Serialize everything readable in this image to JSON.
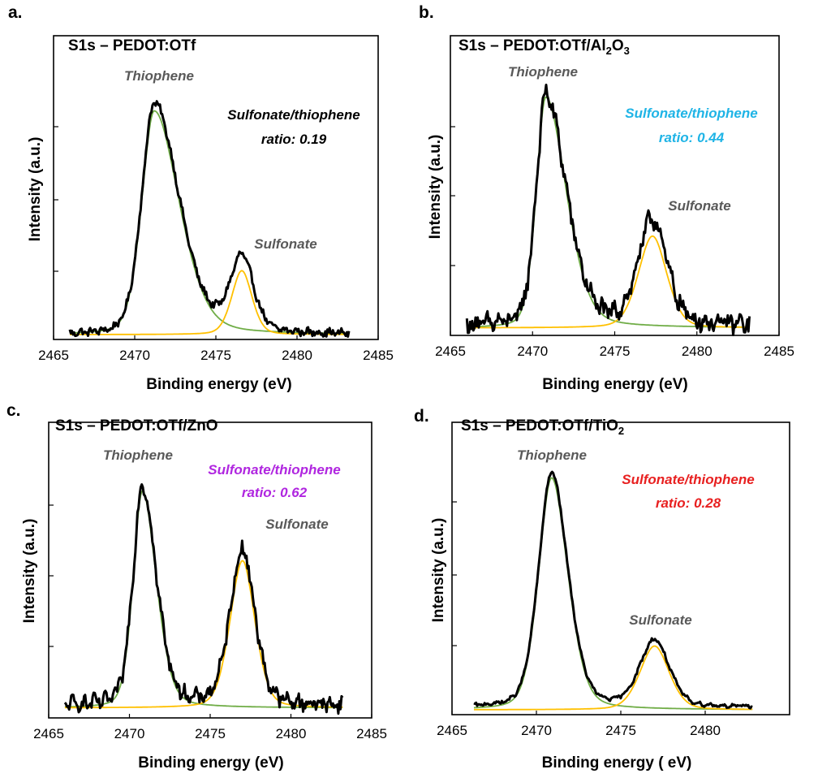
{
  "chart_data": [
    {
      "type": "line",
      "panel_label": "a.",
      "title_main": "S1s – PEDOT:OTf",
      "title_sub": "",
      "title_tail": "",
      "xlabel": "Binding energy (eV)",
      "ylabel": "Intensity (a.u.)",
      "xlim": [
        2465,
        2485
      ],
      "xticks": [
        "2465",
        "2470",
        "2475",
        "2480",
        "2485"
      ],
      "ylim": [
        0,
        1
      ],
      "x_range": [
        2466,
        2483.2
      ],
      "annotations": [
        {
          "text": "Thiophene",
          "color": "#595959"
        },
        {
          "text": "Sulfonate/thiophene",
          "color": "#000000"
        },
        {
          "text": "ratio: 0.19",
          "color": "#000000"
        },
        {
          "text": "Sulfonate",
          "color": "#595959"
        }
      ],
      "series": [
        {
          "color": "#000000",
          "peaks": [
            {
              "center": 2471.2,
              "height": 0.87,
              "wl": 0.8,
              "wr": 1.6
            },
            {
              "center": 2476.6,
              "height": 0.28,
              "wl": 0.75,
              "wr": 0.75
            }
          ],
          "baseline": 0.0,
          "noise": 0.012
        },
        {
          "color": "#70ad47",
          "peaks": [
            {
              "center": 2471.2,
              "height": 0.84,
              "wl": 0.8,
              "wr": 1.6
            }
          ],
          "baseline": 0.0,
          "noise": 0
        },
        {
          "color": "#ffc000",
          "peaks": [
            {
              "center": 2476.6,
              "height": 0.24,
              "wl": 0.65,
              "wr": 0.65
            }
          ],
          "baseline": 0.0,
          "noise": 0
        }
      ]
    },
    {
      "type": "line",
      "panel_label": "b.",
      "title_main": "S1s – PEDOT:OTf/Al",
      "title_sub": "2",
      "title_tail": "O",
      "title_sub2": "3",
      "xlabel": "Binding energy (eV)",
      "ylabel": "Intensity (a.u.)",
      "xlim": [
        2465,
        2485
      ],
      "xticks": [
        "2465",
        "2470",
        "2475",
        "2480",
        "2485"
      ],
      "ylim": [
        0,
        1
      ],
      "x_range": [
        2466,
        2483.2
      ],
      "annotations": [
        {
          "text": "Thiophene",
          "color": "#595959"
        },
        {
          "text": "Sulfonate/thiophene",
          "color": "#1fb4e6"
        },
        {
          "text": "ratio: 0.44",
          "color": "#1fb4e6"
        },
        {
          "text": "Sulfonate",
          "color": "#595959"
        }
      ],
      "series": [
        {
          "color": "#000000",
          "peaks": [
            {
              "center": 2470.8,
              "height": 0.88,
              "wl": 0.6,
              "wr": 1.3
            },
            {
              "center": 2477.3,
              "height": 0.4,
              "wl": 0.9,
              "wr": 0.9
            }
          ],
          "baseline": 0.02,
          "noise": 0.03
        },
        {
          "color": "#70ad47",
          "peaks": [
            {
              "center": 2470.8,
              "height": 0.88,
              "wl": 0.6,
              "wr": 1.3
            }
          ],
          "baseline": 0.01,
          "noise": 0
        },
        {
          "color": "#ffc000",
          "peaks": [
            {
              "center": 2477.3,
              "height": 0.35,
              "wl": 0.9,
              "wr": 0.9
            }
          ],
          "baseline": 0.01,
          "noise": 0
        }
      ]
    },
    {
      "type": "line",
      "panel_label": "c.",
      "title_main": "S1s – PEDOT:OTf/ZnO",
      "title_sub": "",
      "title_tail": "",
      "xlabel": "Binding energy (eV)",
      "ylabel": "Intensity (a.u.)",
      "xlim": [
        2465,
        2485
      ],
      "xticks": [
        "2465",
        "2470",
        "2475",
        "2480",
        "2485"
      ],
      "ylim": [
        0,
        1
      ],
      "x_range": [
        2466,
        2483.2
      ],
      "annotations": [
        {
          "text": "Thiophene",
          "color": "#595959"
        },
        {
          "text": "Sulfonate/thiophene",
          "color": "#b026e0"
        },
        {
          "text": "ratio: 0.62",
          "color": "#b026e0"
        },
        {
          "text": "Sulfonate",
          "color": "#595959"
        }
      ],
      "series": [
        {
          "color": "#000000",
          "peaks": [
            {
              "center": 2470.8,
              "height": 0.85,
              "wl": 0.6,
              "wr": 0.9
            },
            {
              "center": 2477.0,
              "height": 0.6,
              "wl": 0.8,
              "wr": 0.8
            }
          ],
          "baseline": 0.03,
          "noise": 0.025
        },
        {
          "color": "#70ad47",
          "peaks": [
            {
              "center": 2470.8,
              "height": 0.84,
              "wl": 0.6,
              "wr": 0.9
            }
          ],
          "baseline": 0.02,
          "noise": 0
        },
        {
          "color": "#ffc000",
          "peaks": [
            {
              "center": 2477.0,
              "height": 0.57,
              "wl": 0.8,
              "wr": 0.8
            }
          ],
          "baseline": 0.02,
          "noise": 0
        }
      ]
    },
    {
      "type": "line",
      "panel_label": "d.",
      "title_main": "S1s – PEDOT:OTf/TiO",
      "title_sub": "2",
      "title_tail": "",
      "xlabel": "Binding energy ( eV)",
      "ylabel": "Intensity (a.u.)",
      "xlim": [
        2465,
        2485
      ],
      "xticks": [
        "2465",
        "2470",
        "2475",
        "2480"
      ],
      "ylim": [
        0,
        1
      ],
      "x_range": [
        2466.3,
        2482.8
      ],
      "annotations": [
        {
          "text": "Thiophene",
          "color": "#595959"
        },
        {
          "text": "Sulfonate/thiophene",
          "color": "#e82020"
        },
        {
          "text": "ratio: 0.28",
          "color": "#e82020"
        },
        {
          "text": "Sulfonate",
          "color": "#595959"
        }
      ],
      "series": [
        {
          "color": "#000000",
          "peaks": [
            {
              "center": 2470.9,
              "height": 0.92,
              "wl": 0.8,
              "wr": 1.0
            },
            {
              "center": 2477.0,
              "height": 0.26,
              "wl": 0.9,
              "wr": 0.9
            }
          ],
          "baseline": 0.01,
          "noise": 0.006
        },
        {
          "color": "#70ad47",
          "peaks": [
            {
              "center": 2470.9,
              "height": 0.91,
              "wl": 0.8,
              "wr": 1.0
            }
          ],
          "baseline": 0.0,
          "noise": 0
        },
        {
          "color": "#ffc000",
          "peaks": [
            {
              "center": 2477.0,
              "height": 0.25,
              "wl": 0.9,
              "wr": 0.9
            }
          ],
          "baseline": 0.0,
          "noise": 0
        }
      ]
    }
  ]
}
